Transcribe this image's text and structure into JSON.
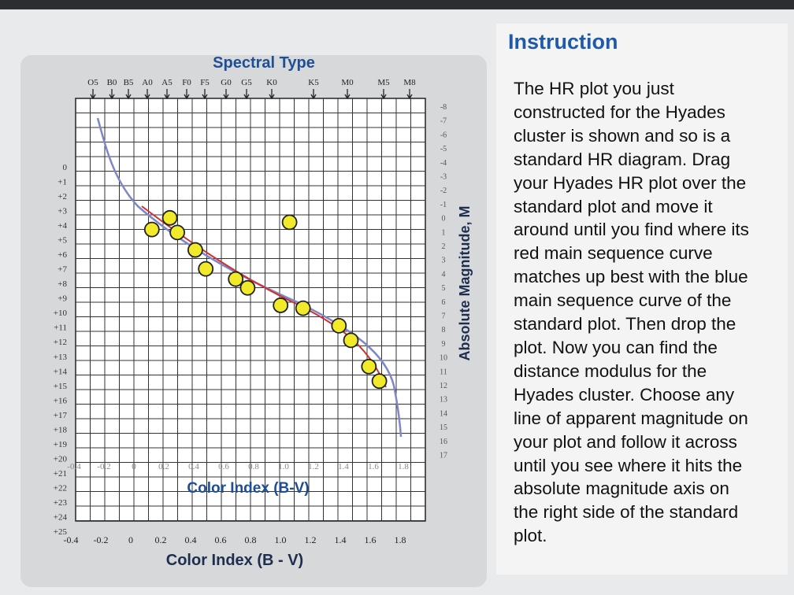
{
  "plot": {
    "title": "Spectral Type",
    "spectral_types": [
      "O5",
      "B0",
      "B5",
      "A0",
      "A5",
      "F0",
      "F5",
      "G0",
      "G5",
      "K0",
      "K5",
      "M0",
      "M5",
      "M8"
    ],
    "apparent_axis_labels": [
      "0",
      "+1",
      "+2",
      "+3",
      "+4",
      "+5",
      "+6",
      "+7",
      "+8",
      "+9",
      "+10",
      "+11",
      "+12",
      "+13",
      "+14",
      "+15",
      "+16",
      "+17",
      "+18",
      "+19",
      "+20",
      "+21",
      "+22",
      "+23",
      "+24",
      "+25"
    ],
    "absolute_axis_labels": [
      "-8",
      "-7",
      "-6",
      "-5",
      "-4",
      "-3",
      "-2",
      "-1",
      "0",
      "1",
      "2",
      "3",
      "4",
      "5",
      "6",
      "7",
      "8",
      "9",
      "10",
      "11",
      "12",
      "13",
      "14",
      "15",
      "16",
      "17"
    ],
    "absolute_axis_title": "Absolute Magnitude, M",
    "inner_color_labels": [
      "-0.4",
      "-0.2",
      "0",
      "0.2",
      "0.4",
      "0.6",
      "0.8",
      "1.0",
      "1.2",
      "1.4",
      "1.6",
      "1.8"
    ],
    "inner_color_title": "Color Index (B-V)",
    "color_labels": [
      "-0.4",
      "-0.2",
      "0",
      "0.2",
      "0.4",
      "0.6",
      "0.8",
      "1.0",
      "1.2",
      "1.4",
      "1.6",
      "1.8"
    ],
    "color_title": "Color Index (B - V)",
    "hyades_points": {
      "bv": [
        0.24,
        0.12,
        0.29,
        0.41,
        0.48,
        0.68,
        0.76,
        0.98,
        1.13,
        1.04,
        1.37,
        1.45,
        1.57,
        1.64
      ],
      "m": [
        3.5,
        4.3,
        4.5,
        5.7,
        7.0,
        7.7,
        8.3,
        9.5,
        9.7,
        3.8,
        10.9,
        11.9,
        13.7,
        14.7
      ]
    }
  },
  "instruction": {
    "title": "Instruction",
    "lines": [
      "The HR plot you just",
      "constructed for the Hyades",
      "cluster is shown and so is a",
      "standard HR diagram. Drag",
      "your Hyades HR plot over the",
      "standard plot and move it",
      "around until you find where its",
      "red main sequence curve",
      "matches up best with the blue",
      "main sequence curve of the",
      "standard plot. Then drop the",
      "plot. Now you can find the",
      "distance modulus for the",
      "Hyades cluster. Choose any",
      "line of apparent magnitude on",
      "your plot and follow it across",
      "until you see where it hits the",
      "absolute magnitude axis on",
      "the right side of the standard",
      "plot."
    ]
  }
}
